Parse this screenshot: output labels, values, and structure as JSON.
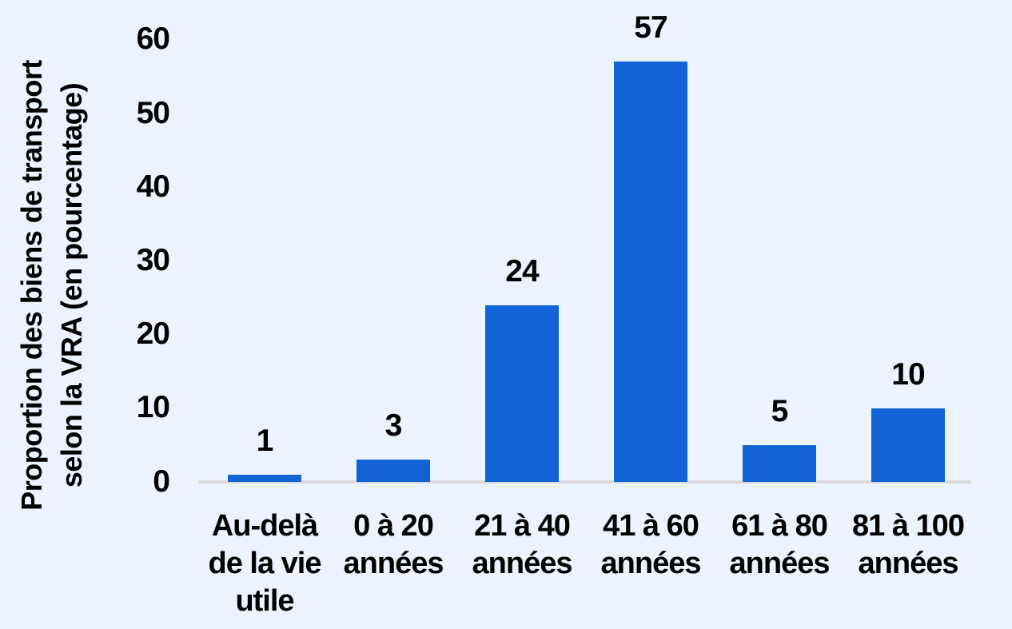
{
  "chart_data": {
    "type": "bar",
    "title": "",
    "categories": [
      "Au-delà de la vie utile",
      "0 à 20 années",
      "21 à 40 années",
      "41 à 60 années",
      "61 à 80 années",
      "81 à 100 années"
    ],
    "category_lines": [
      [
        "Au-delà",
        "de la vie",
        "utile"
      ],
      [
        "0 à 20",
        "années"
      ],
      [
        "21 à 40",
        "années"
      ],
      [
        "41 à 60",
        "années"
      ],
      [
        "61 à 80",
        "années"
      ],
      [
        "81 à 100",
        "années"
      ]
    ],
    "values": [
      1,
      3,
      24,
      57,
      5,
      10
    ],
    "data_labels": [
      "1",
      "3",
      "24",
      "57",
      "5",
      "10"
    ],
    "xlabel": "",
    "ylabel": "Proportion des biens de transport selon la VRA (en pourcentage)",
    "ylabel_lines": [
      "Proportion des biens de transport",
      "selon la VRA (en pourcentage)"
    ],
    "ylim": [
      0,
      60
    ],
    "yticks": [
      0,
      10,
      20,
      30,
      40,
      50,
      60
    ],
    "grid": false,
    "legend": false,
    "colors": {
      "bar": "#1163d6",
      "background": "#edf3fc",
      "axis_line": "#d9d9d9",
      "text": "#000000"
    }
  }
}
